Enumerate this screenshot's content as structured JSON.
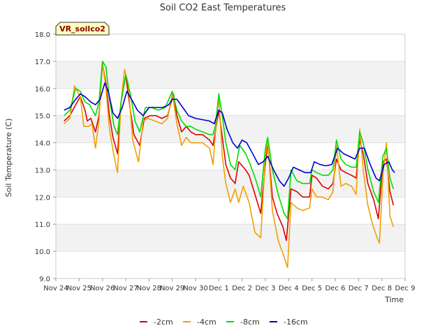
{
  "chart_data": {
    "type": "line",
    "title": "Soil CO2 East Temperatures",
    "xlabel": "Time",
    "ylabel": "Soil Temperature (C)",
    "station_label": "VR_soilco2",
    "ylim": [
      9.0,
      18.0
    ],
    "xlim": [
      0,
      15
    ],
    "y_ticks": [
      "9.0",
      "10.0",
      "11.0",
      "12.0",
      "13.0",
      "14.0",
      "15.0",
      "16.0",
      "17.0",
      "18.0"
    ],
    "x_ticks": [
      "Nov 24",
      "Nov 25",
      "Nov 26",
      "Nov 27",
      "Nov 28",
      "Nov 29",
      "Nov 30",
      "Dec 1",
      "Dec 2",
      "Dec 3",
      "Dec 4",
      "Dec 5",
      "Dec 6",
      "Dec 7",
      "Dec 8",
      "Dec 9"
    ],
    "x_note": "x values are days counted from Nov 24 00:00",
    "legend_position": "bottom-center",
    "grid": "alternating horizontal bands",
    "series": [
      {
        "name": "-2cm",
        "color": "#dd0000",
        "points": [
          [
            0.35,
            14.8
          ],
          [
            0.6,
            15.0
          ],
          [
            0.85,
            15.4
          ],
          [
            1.05,
            15.7
          ],
          [
            1.25,
            15.2
          ],
          [
            1.35,
            14.8
          ],
          [
            1.5,
            14.9
          ],
          [
            1.7,
            14.4
          ],
          [
            1.85,
            15.0
          ],
          [
            2.0,
            16.9
          ],
          [
            2.15,
            16.2
          ],
          [
            2.3,
            15.0
          ],
          [
            2.45,
            14.2
          ],
          [
            2.65,
            13.6
          ],
          [
            2.8,
            15.5
          ],
          [
            3.0,
            16.5
          ],
          [
            3.15,
            15.5
          ],
          [
            3.35,
            14.3
          ],
          [
            3.6,
            13.9
          ],
          [
            3.8,
            14.9
          ],
          [
            4.05,
            15.0
          ],
          [
            4.3,
            15.0
          ],
          [
            4.55,
            14.9
          ],
          [
            4.8,
            15.0
          ],
          [
            5.05,
            15.8
          ],
          [
            5.2,
            15.0
          ],
          [
            5.4,
            14.4
          ],
          [
            5.6,
            14.6
          ],
          [
            5.8,
            14.4
          ],
          [
            6.0,
            14.3
          ],
          [
            6.3,
            14.3
          ],
          [
            6.6,
            14.1
          ],
          [
            6.75,
            13.9
          ],
          [
            6.85,
            14.4
          ],
          [
            7.0,
            15.2
          ],
          [
            7.15,
            14.2
          ],
          [
            7.3,
            13.2
          ],
          [
            7.5,
            12.7
          ],
          [
            7.7,
            12.5
          ],
          [
            7.85,
            13.3
          ],
          [
            8.15,
            13.0
          ],
          [
            8.3,
            12.8
          ],
          [
            8.55,
            12.1
          ],
          [
            8.8,
            11.4
          ],
          [
            9.0,
            13.2
          ],
          [
            9.1,
            14.0
          ],
          [
            9.3,
            12.0
          ],
          [
            9.5,
            11.4
          ],
          [
            9.75,
            10.9
          ],
          [
            9.9,
            10.4
          ],
          [
            10.1,
            12.3
          ],
          [
            10.35,
            12.2
          ],
          [
            10.6,
            12.0
          ],
          [
            10.9,
            12.0
          ],
          [
            11.0,
            12.8
          ],
          [
            11.2,
            12.7
          ],
          [
            11.45,
            12.4
          ],
          [
            11.7,
            12.3
          ],
          [
            11.9,
            12.5
          ],
          [
            12.05,
            13.4
          ],
          [
            12.25,
            13.0
          ],
          [
            12.45,
            12.9
          ],
          [
            12.7,
            12.8
          ],
          [
            12.9,
            12.7
          ],
          [
            13.05,
            14.1
          ],
          [
            13.2,
            13.6
          ],
          [
            13.4,
            12.5
          ],
          [
            13.65,
            11.9
          ],
          [
            13.85,
            11.2
          ],
          [
            14.05,
            13.3
          ],
          [
            14.2,
            13.4
          ],
          [
            14.35,
            12.2
          ],
          [
            14.5,
            11.7
          ]
        ]
      },
      {
        "name": "-4cm",
        "color": "#f0a000",
        "points": [
          [
            0.35,
            14.7
          ],
          [
            0.6,
            14.9
          ],
          [
            0.8,
            16.1
          ],
          [
            1.05,
            15.7
          ],
          [
            1.2,
            14.6
          ],
          [
            1.4,
            14.6
          ],
          [
            1.55,
            14.7
          ],
          [
            1.7,
            13.8
          ],
          [
            1.85,
            14.8
          ],
          [
            2.0,
            17.0
          ],
          [
            2.15,
            16.0
          ],
          [
            2.3,
            14.5
          ],
          [
            2.5,
            13.5
          ],
          [
            2.65,
            12.9
          ],
          [
            2.8,
            15.5
          ],
          [
            2.95,
            16.7
          ],
          [
            3.1,
            16.2
          ],
          [
            3.3,
            14.1
          ],
          [
            3.55,
            13.3
          ],
          [
            3.75,
            14.8
          ],
          [
            3.95,
            14.9
          ],
          [
            4.25,
            14.8
          ],
          [
            4.55,
            14.7
          ],
          [
            4.8,
            14.9
          ],
          [
            5.0,
            15.8
          ],
          [
            5.2,
            14.7
          ],
          [
            5.4,
            13.9
          ],
          [
            5.6,
            14.2
          ],
          [
            5.8,
            14.0
          ],
          [
            6.0,
            14.0
          ],
          [
            6.3,
            14.0
          ],
          [
            6.6,
            13.8
          ],
          [
            6.75,
            13.2
          ],
          [
            6.85,
            14.3
          ],
          [
            7.0,
            15.7
          ],
          [
            7.15,
            13.5
          ],
          [
            7.3,
            12.5
          ],
          [
            7.5,
            11.8
          ],
          [
            7.7,
            12.3
          ],
          [
            7.85,
            11.8
          ],
          [
            8.05,
            12.4
          ],
          [
            8.3,
            11.8
          ],
          [
            8.55,
            10.7
          ],
          [
            8.8,
            10.5
          ],
          [
            9.0,
            13.5
          ],
          [
            9.1,
            14.1
          ],
          [
            9.3,
            11.5
          ],
          [
            9.55,
            10.4
          ],
          [
            9.8,
            9.8
          ],
          [
            9.95,
            9.4
          ],
          [
            10.1,
            11.8
          ],
          [
            10.35,
            11.6
          ],
          [
            10.6,
            11.5
          ],
          [
            10.9,
            11.6
          ],
          [
            11.0,
            12.3
          ],
          [
            11.2,
            12.0
          ],
          [
            11.45,
            12.0
          ],
          [
            11.7,
            11.9
          ],
          [
            11.9,
            12.2
          ],
          [
            12.05,
            13.9
          ],
          [
            12.25,
            12.4
          ],
          [
            12.45,
            12.5
          ],
          [
            12.7,
            12.4
          ],
          [
            12.9,
            12.1
          ],
          [
            13.05,
            14.5
          ],
          [
            13.2,
            13.0
          ],
          [
            13.4,
            11.7
          ],
          [
            13.6,
            11.0
          ],
          [
            13.8,
            10.5
          ],
          [
            13.9,
            10.3
          ],
          [
            14.05,
            12.8
          ],
          [
            14.2,
            14.0
          ],
          [
            14.35,
            11.3
          ],
          [
            14.5,
            10.9
          ]
        ]
      },
      {
        "name": "-8cm",
        "color": "#00dd00",
        "points": [
          [
            0.35,
            15.0
          ],
          [
            0.6,
            15.2
          ],
          [
            0.85,
            16.0
          ],
          [
            1.05,
            15.9
          ],
          [
            1.25,
            15.5
          ],
          [
            1.45,
            15.4
          ],
          [
            1.7,
            15.0
          ],
          [
            1.85,
            15.5
          ],
          [
            2.0,
            17.0
          ],
          [
            2.15,
            16.8
          ],
          [
            2.3,
            15.6
          ],
          [
            2.5,
            14.6
          ],
          [
            2.65,
            14.3
          ],
          [
            2.8,
            15.5
          ],
          [
            3.0,
            16.5
          ],
          [
            3.2,
            15.8
          ],
          [
            3.4,
            14.8
          ],
          [
            3.6,
            14.4
          ],
          [
            3.85,
            15.3
          ],
          [
            4.1,
            15.3
          ],
          [
            4.4,
            15.2
          ],
          [
            4.7,
            15.3
          ],
          [
            5.0,
            15.9
          ],
          [
            5.2,
            15.2
          ],
          [
            5.4,
            14.8
          ],
          [
            5.6,
            14.6
          ],
          [
            5.8,
            14.6
          ],
          [
            6.0,
            14.5
          ],
          [
            6.3,
            14.4
          ],
          [
            6.6,
            14.3
          ],
          [
            6.75,
            14.3
          ],
          [
            6.85,
            14.6
          ],
          [
            7.0,
            15.8
          ],
          [
            7.15,
            15.0
          ],
          [
            7.3,
            14.0
          ],
          [
            7.5,
            13.2
          ],
          [
            7.7,
            13.0
          ],
          [
            7.9,
            13.9
          ],
          [
            8.15,
            13.6
          ],
          [
            8.35,
            13.2
          ],
          [
            8.6,
            12.6
          ],
          [
            8.8,
            12.0
          ],
          [
            9.0,
            13.8
          ],
          [
            9.1,
            14.2
          ],
          [
            9.3,
            13.0
          ],
          [
            9.55,
            12.1
          ],
          [
            9.8,
            11.4
          ],
          [
            9.95,
            11.2
          ],
          [
            10.1,
            13.0
          ],
          [
            10.35,
            12.6
          ],
          [
            10.6,
            12.5
          ],
          [
            10.9,
            12.5
          ],
          [
            11.0,
            13.0
          ],
          [
            11.2,
            12.9
          ],
          [
            11.45,
            12.8
          ],
          [
            11.7,
            12.8
          ],
          [
            11.9,
            13.0
          ],
          [
            12.05,
            14.1
          ],
          [
            12.25,
            13.4
          ],
          [
            12.45,
            13.2
          ],
          [
            12.7,
            13.1
          ],
          [
            12.9,
            13.1
          ],
          [
            13.05,
            14.4
          ],
          [
            13.2,
            14.0
          ],
          [
            13.4,
            13.0
          ],
          [
            13.65,
            12.2
          ],
          [
            13.85,
            11.8
          ],
          [
            14.05,
            13.5
          ],
          [
            14.2,
            13.8
          ],
          [
            14.35,
            12.7
          ],
          [
            14.5,
            12.3
          ]
        ]
      },
      {
        "name": "-16cm",
        "color": "#0000cc",
        "points": [
          [
            0.35,
            15.2
          ],
          [
            0.6,
            15.3
          ],
          [
            0.85,
            15.6
          ],
          [
            1.05,
            15.8
          ],
          [
            1.25,
            15.7
          ],
          [
            1.5,
            15.5
          ],
          [
            1.7,
            15.4
          ],
          [
            1.9,
            15.6
          ],
          [
            2.1,
            16.2
          ],
          [
            2.25,
            15.9
          ],
          [
            2.45,
            15.1
          ],
          [
            2.65,
            14.9
          ],
          [
            2.85,
            15.3
          ],
          [
            3.05,
            15.9
          ],
          [
            3.25,
            15.6
          ],
          [
            3.5,
            15.2
          ],
          [
            3.75,
            15.0
          ],
          [
            4.0,
            15.3
          ],
          [
            4.3,
            15.3
          ],
          [
            4.6,
            15.3
          ],
          [
            4.85,
            15.4
          ],
          [
            5.0,
            15.6
          ],
          [
            5.2,
            15.6
          ],
          [
            5.45,
            15.3
          ],
          [
            5.7,
            15.0
          ],
          [
            6.0,
            14.9
          ],
          [
            6.3,
            14.85
          ],
          [
            6.6,
            14.8
          ],
          [
            6.8,
            14.7
          ],
          [
            7.0,
            15.2
          ],
          [
            7.15,
            15.1
          ],
          [
            7.35,
            14.5
          ],
          [
            7.6,
            14.0
          ],
          [
            7.8,
            13.8
          ],
          [
            8.0,
            14.1
          ],
          [
            8.2,
            14.0
          ],
          [
            8.45,
            13.6
          ],
          [
            8.7,
            13.2
          ],
          [
            8.9,
            13.3
          ],
          [
            9.1,
            13.5
          ],
          [
            9.35,
            13.0
          ],
          [
            9.6,
            12.6
          ],
          [
            9.8,
            12.4
          ],
          [
            10.0,
            12.7
          ],
          [
            10.2,
            13.1
          ],
          [
            10.45,
            13.0
          ],
          [
            10.7,
            12.9
          ],
          [
            10.95,
            12.9
          ],
          [
            11.1,
            13.3
          ],
          [
            11.35,
            13.2
          ],
          [
            11.6,
            13.15
          ],
          [
            11.85,
            13.2
          ],
          [
            12.1,
            13.8
          ],
          [
            12.35,
            13.6
          ],
          [
            12.6,
            13.5
          ],
          [
            12.85,
            13.4
          ],
          [
            13.05,
            13.8
          ],
          [
            13.25,
            13.8
          ],
          [
            13.5,
            13.2
          ],
          [
            13.75,
            12.7
          ],
          [
            13.9,
            12.6
          ],
          [
            14.1,
            13.2
          ],
          [
            14.3,
            13.3
          ],
          [
            14.45,
            13.0
          ],
          [
            14.55,
            12.9
          ]
        ]
      }
    ]
  }
}
